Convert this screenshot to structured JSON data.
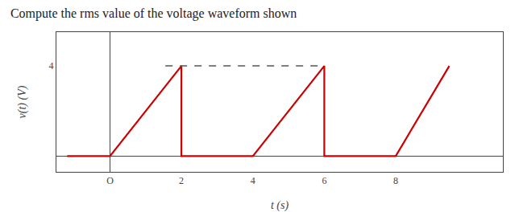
{
  "chart_data": {
    "type": "line",
    "title": "Compute the rms value of the voltage waveform shown",
    "xlabel": "t (s)",
    "ylabel": "v(t) (V)",
    "series": [
      {
        "x": [
          -1.2,
          0,
          2,
          2,
          4,
          6,
          6,
          8,
          9.5
        ],
        "values": [
          0,
          0,
          4,
          0,
          0,
          4,
          0,
          0,
          4
        ],
        "color": "#cc0000",
        "line_style": "solid"
      },
      {
        "x": [
          1.55,
          6.0
        ],
        "values": [
          4,
          4
        ],
        "color": "#555555",
        "line_style": "dashed"
      }
    ],
    "xlim": [
      -1.5,
      11.0
    ],
    "ylim": [
      -0.7,
      5.5
    ],
    "xticks": [
      {
        "value": 0,
        "label": "O"
      },
      2,
      4,
      6,
      8
    ],
    "yticks": [
      4
    ],
    "grid": false
  }
}
